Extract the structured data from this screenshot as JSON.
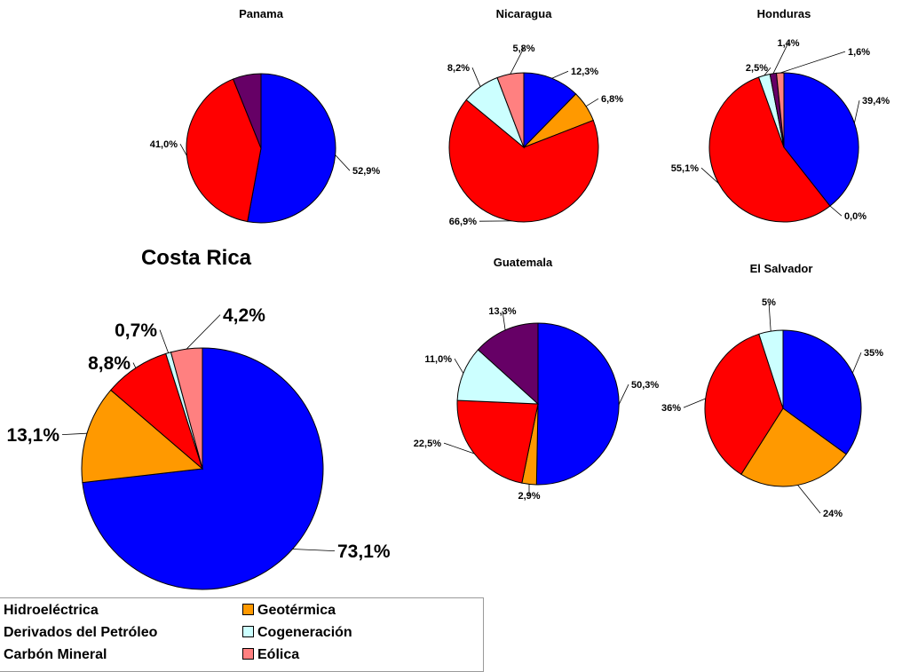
{
  "chart_data": [
    {
      "type": "pie",
      "title": "Panama",
      "slices": [
        {
          "category": "Hidroeléctrica",
          "value": 52.9,
          "label": "52,9%"
        },
        {
          "category": "Derivados del Petróleo",
          "value": 41.0,
          "label": "41,0%"
        },
        {
          "category": "Carbón Mineral",
          "value": 6.1,
          "label": ""
        }
      ]
    },
    {
      "type": "pie",
      "title": "Nicaragua",
      "slices": [
        {
          "category": "Hidroeléctrica",
          "value": 12.3,
          "label": "12,3%"
        },
        {
          "category": "Geotérmica",
          "value": 6.8,
          "label": "6,8%"
        },
        {
          "category": "Derivados del Petróleo",
          "value": 66.9,
          "label": "66,9%"
        },
        {
          "category": "Cogeneración",
          "value": 8.2,
          "label": "8,2%"
        },
        {
          "category": "Eólica",
          "value": 5.8,
          "label": "5,8%"
        }
      ]
    },
    {
      "type": "pie",
      "title": "Honduras",
      "slices": [
        {
          "category": "Hidroeléctrica",
          "value": 39.4,
          "label": "39,4%"
        },
        {
          "category": "Geotérmica",
          "value": 0.0,
          "label": "0,0%"
        },
        {
          "category": "Derivados del Petróleo",
          "value": 55.1,
          "label": "55,1%"
        },
        {
          "category": "Cogeneración",
          "value": 2.5,
          "label": "2,5%"
        },
        {
          "category": "Carbón Mineral",
          "value": 1.4,
          "label": "1,4%"
        },
        {
          "category": "Eólica",
          "value": 1.6,
          "label": "1,6%"
        }
      ]
    },
    {
      "type": "pie",
      "title": "Costa Rica",
      "slices": [
        {
          "category": "Hidroeléctrica",
          "value": 73.1,
          "label": "73,1%"
        },
        {
          "category": "Geotérmica",
          "value": 13.1,
          "label": "13,1%"
        },
        {
          "category": "Derivados del Petróleo",
          "value": 8.8,
          "label": "8,8%"
        },
        {
          "category": "Cogeneración",
          "value": 0.7,
          "label": "0,7%"
        },
        {
          "category": "Eólica",
          "value": 4.2,
          "label": "4,2%"
        }
      ]
    },
    {
      "type": "pie",
      "title": "Guatemala",
      "slices": [
        {
          "category": "Hidroeléctrica",
          "value": 50.3,
          "label": "50,3%"
        },
        {
          "category": "Geotérmica",
          "value": 2.9,
          "label": "2,9%"
        },
        {
          "category": "Derivados del Petróleo",
          "value": 22.5,
          "label": "22,5%"
        },
        {
          "category": "Cogeneración",
          "value": 11.0,
          "label": "11,0%"
        },
        {
          "category": "Carbón Mineral",
          "value": 13.3,
          "label": "13,3%"
        }
      ]
    },
    {
      "type": "pie",
      "title": "El Salvador",
      "slices": [
        {
          "category": "Hidroeléctrica",
          "value": 35,
          "label": "35%"
        },
        {
          "category": "Geotérmica",
          "value": 24,
          "label": "24%"
        },
        {
          "category": "Derivados del Petróleo",
          "value": 36,
          "label": "36%"
        },
        {
          "category": "Cogeneración",
          "value": 5,
          "label": "5%"
        }
      ]
    }
  ],
  "legend": {
    "placement": "bottom-left",
    "items": [
      {
        "label": "Hidroeléctrica",
        "color": "#0000ff"
      },
      {
        "label": "Geotérmica",
        "color": "#ff9900"
      },
      {
        "label": "Derivados del Petróleo",
        "color": "#ff0000"
      },
      {
        "label": "Cogeneración",
        "color": "#ccffff"
      },
      {
        "label": "Carbón Mineral",
        "color": "#660066"
      },
      {
        "label": "Eólica",
        "color": "#ff8080"
      }
    ]
  },
  "colors": {
    "Hidroeléctrica": "#0000ff",
    "Geotérmica": "#ff9900",
    "Derivados del Petróleo": "#ff0000",
    "Cogeneración": "#ccffff",
    "Carbón Mineral": "#660066",
    "Eólica": "#ff8080"
  }
}
